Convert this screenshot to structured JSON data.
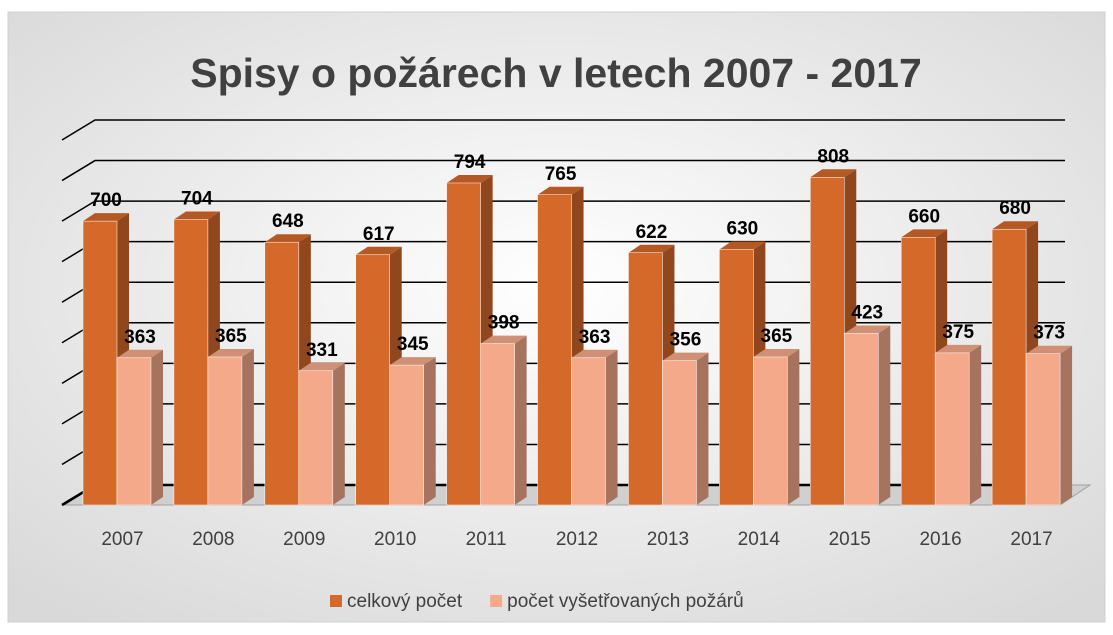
{
  "chart_data": {
    "type": "bar3d",
    "title": "Spisy o požárech v letech 2007 - 2017",
    "categories": [
      "2007",
      "2008",
      "2009",
      "2010",
      "2011",
      "2012",
      "2013",
      "2014",
      "2015",
      "2016",
      "2017"
    ],
    "series": [
      {
        "name": "celkový počet",
        "color": "#d4692a",
        "values": [
          700,
          704,
          648,
          617,
          794,
          765,
          622,
          630,
          808,
          660,
          680
        ]
      },
      {
        "name": "počet vyšetřovaných požárů",
        "color": "#f4a98a",
        "values": [
          363,
          365,
          331,
          345,
          398,
          363,
          356,
          365,
          423,
          375,
          373
        ]
      }
    ],
    "ylim": [
      0,
      900
    ],
    "yticks": [
      0,
      100,
      200,
      300,
      400,
      500,
      600,
      700,
      800,
      900
    ],
    "grid": true,
    "legend": "bottom"
  }
}
